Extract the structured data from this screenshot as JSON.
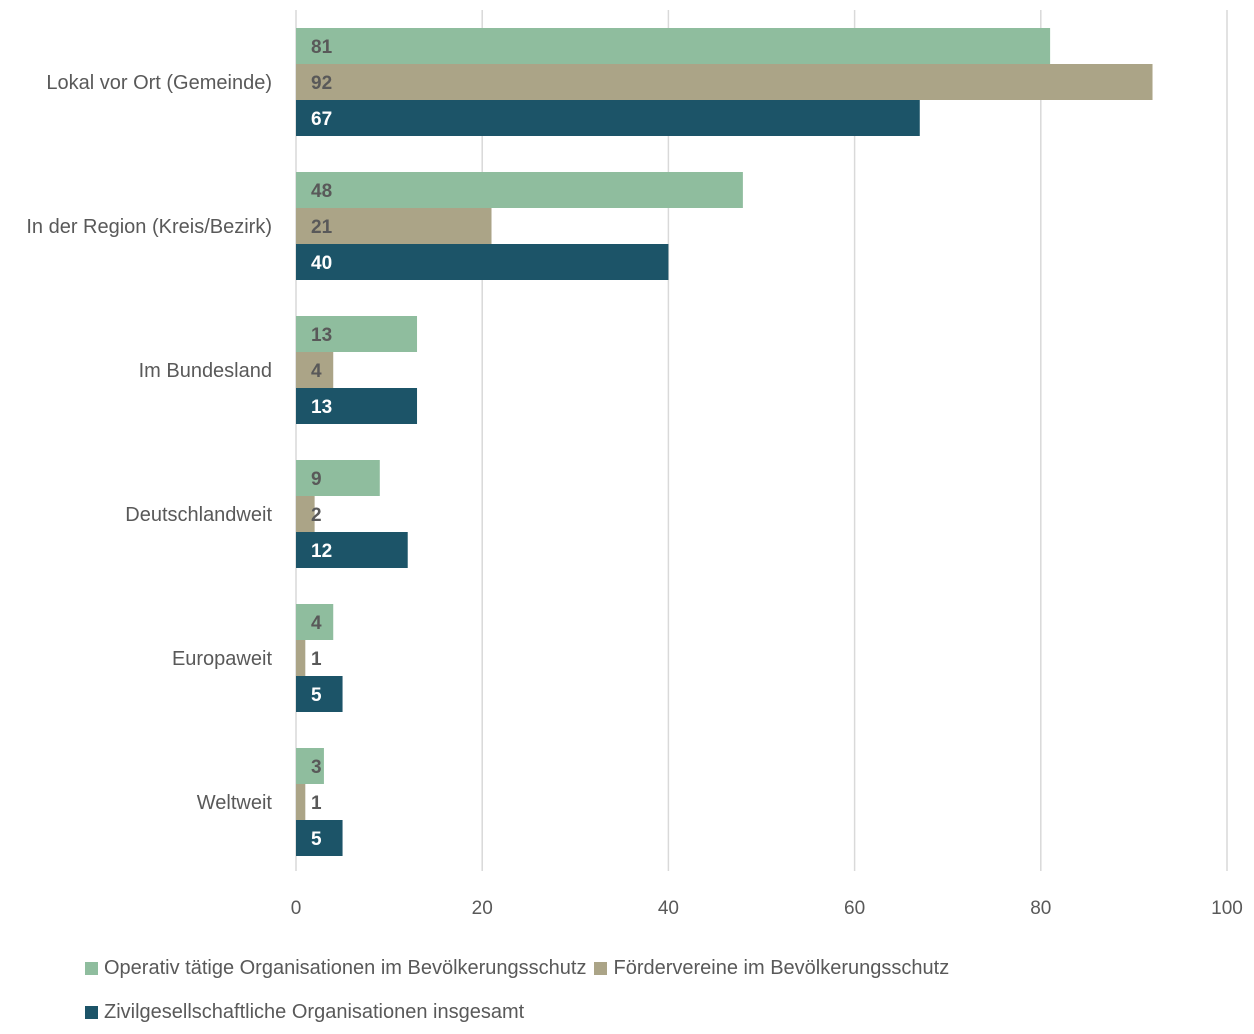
{
  "chart_data": {
    "type": "bar",
    "orientation": "horizontal",
    "categories": [
      "Lokal vor Ort (Gemeinde)",
      "In der Region (Kreis/Bezirk)",
      "Im Bundesland",
      "Deutschlandweit",
      "Europaweit",
      "Weltweit"
    ],
    "series": [
      {
        "name": "Operativ tätige Organisationen im Bevölkerungsschutz",
        "color": "#8fbd9e",
        "label_color": "#595959",
        "values": [
          81,
          48,
          13,
          9,
          4,
          3
        ]
      },
      {
        "name": "Fördervereine im Bevölkerungsschutz",
        "color": "#aba487",
        "label_color": "#595959",
        "values": [
          92,
          21,
          4,
          2,
          1,
          1
        ]
      },
      {
        "name": "Zivilgesellschaftliche Organisationen insgesamt",
        "color": "#1c5468",
        "label_color": "#ffffff",
        "values": [
          67,
          40,
          13,
          12,
          5,
          5
        ]
      }
    ],
    "xlim": [
      0,
      100
    ],
    "xticks": [
      0,
      20,
      40,
      60,
      80,
      100
    ],
    "grid": true,
    "data_labels": true,
    "legend_position": "bottom",
    "gridline_color": "#d9d9d9"
  }
}
